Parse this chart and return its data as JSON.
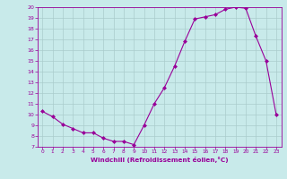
{
  "x": [
    0,
    1,
    2,
    3,
    4,
    5,
    6,
    7,
    8,
    9,
    10,
    11,
    12,
    13,
    14,
    15,
    16,
    17,
    18,
    19,
    20,
    21,
    22,
    23
  ],
  "y": [
    10.3,
    9.8,
    9.1,
    8.7,
    8.3,
    8.3,
    7.8,
    7.5,
    7.5,
    7.2,
    9.0,
    11.0,
    12.5,
    14.5,
    16.8,
    18.9,
    19.1,
    19.3,
    19.8,
    20.0,
    19.9,
    17.3,
    15.0,
    10.0
  ],
  "line_color": "#990099",
  "marker": "D",
  "marker_size": 2,
  "bg_color": "#c8eaea",
  "grid_color": "#aacccc",
  "xlabel": "Windchill (Refroidissement éolien,°C)",
  "xlabel_color": "#990099",
  "tick_color": "#990099",
  "ylim": [
    7,
    20
  ],
  "xlim": [
    -0.5,
    23.5
  ],
  "yticks": [
    7,
    8,
    9,
    10,
    11,
    12,
    13,
    14,
    15,
    16,
    17,
    18,
    19,
    20
  ],
  "xticks": [
    0,
    1,
    2,
    3,
    4,
    5,
    6,
    7,
    8,
    9,
    10,
    11,
    12,
    13,
    14,
    15,
    16,
    17,
    18,
    19,
    20,
    21,
    22,
    23
  ]
}
